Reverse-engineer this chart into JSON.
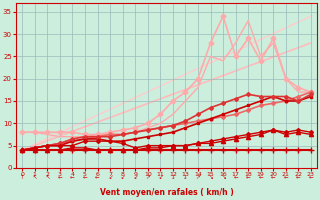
{
  "bg_color": "#cceedd",
  "grid_color": "#99bbbb",
  "xlabel": "Vent moyen/en rafales ( km/h )",
  "xlim": [
    -0.5,
    23.5
  ],
  "ylim": [
    0,
    37
  ],
  "yticks": [
    0,
    5,
    10,
    15,
    20,
    25,
    30,
    35
  ],
  "xticks": [
    0,
    1,
    2,
    3,
    4,
    5,
    6,
    7,
    8,
    9,
    10,
    11,
    12,
    13,
    14,
    15,
    16,
    17,
    18,
    19,
    20,
    21,
    22,
    23
  ],
  "lines": [
    {
      "comment": "flat red line with + markers at y~4",
      "x": [
        0,
        1,
        2,
        3,
        4,
        5,
        6,
        7,
        8,
        9,
        10,
        11,
        12,
        13,
        14,
        15,
        16,
        17,
        18,
        19,
        20,
        21,
        22,
        23
      ],
      "y": [
        4,
        4,
        4,
        4,
        4,
        4,
        4,
        4,
        4,
        4,
        4,
        4,
        4,
        4,
        4,
        4,
        4,
        4,
        4,
        4,
        4,
        4,
        4,
        4
      ],
      "color": "#cc0000",
      "lw": 1.5,
      "marker": "+",
      "ms": 4,
      "zorder": 6
    },
    {
      "comment": "red line with triangle markers - mostly flat ~4-7, spike at x=20",
      "x": [
        0,
        1,
        2,
        3,
        4,
        5,
        6,
        7,
        8,
        9,
        10,
        11,
        12,
        13,
        14,
        15,
        16,
        17,
        18,
        19,
        20,
        21,
        22,
        23
      ],
      "y": [
        4,
        4,
        4,
        4,
        4.5,
        4.5,
        4,
        4,
        4,
        4,
        4.5,
        4.5,
        5,
        5,
        5.5,
        5.5,
        6,
        6.5,
        7,
        7.5,
        8.5,
        7.5,
        8,
        7.5
      ],
      "color": "#cc0000",
      "lw": 1.0,
      "marker": "^",
      "ms": 3,
      "zorder": 5
    },
    {
      "comment": "red dotted line with diamond markers - dips at x=9, x=12",
      "x": [
        0,
        1,
        2,
        3,
        4,
        5,
        6,
        7,
        8,
        9,
        10,
        11,
        12,
        13,
        14,
        15,
        16,
        17,
        18,
        19,
        20,
        21,
        22,
        23
      ],
      "y": [
        4,
        4.5,
        5,
        5,
        5,
        6,
        6,
        6,
        5.5,
        4.5,
        5,
        5,
        5,
        5,
        5.5,
        6,
        6.5,
        7,
        7.5,
        8,
        8.5,
        8,
        8.5,
        8
      ],
      "color": "#cc0000",
      "lw": 1.0,
      "marker": "D",
      "ms": 2,
      "zorder": 5
    },
    {
      "comment": "red line with square markers rising to ~16 at x=19",
      "x": [
        0,
        1,
        2,
        3,
        4,
        5,
        6,
        7,
        8,
        9,
        10,
        11,
        12,
        13,
        14,
        15,
        16,
        17,
        18,
        19,
        20,
        21,
        22,
        23
      ],
      "y": [
        4,
        4.5,
        5,
        5,
        6,
        6.5,
        6.5,
        6,
        6,
        6.5,
        7,
        7.5,
        8,
        9,
        10,
        11,
        12,
        13,
        14,
        15,
        16,
        15,
        15,
        16
      ],
      "color": "#cc0000",
      "lw": 1.2,
      "marker": "s",
      "ms": 2,
      "zorder": 4
    },
    {
      "comment": "slightly lighter red line rising steadily - dashed-style with markers",
      "x": [
        0,
        1,
        2,
        3,
        4,
        5,
        6,
        7,
        8,
        9,
        10,
        11,
        12,
        13,
        14,
        15,
        16,
        17,
        18,
        19,
        20,
        21,
        22,
        23
      ],
      "y": [
        4,
        4.5,
        5,
        5.5,
        6.5,
        7,
        7,
        7,
        7.5,
        8,
        8.5,
        9,
        9.5,
        10.5,
        12,
        13.5,
        14.5,
        15.5,
        16.5,
        16,
        16,
        16,
        15,
        16.5
      ],
      "color": "#dd3333",
      "lw": 1.2,
      "marker": "D",
      "ms": 2,
      "zorder": 4
    },
    {
      "comment": "medium pink line roughly linear 4 to 17",
      "x": [
        0,
        1,
        2,
        3,
        4,
        5,
        6,
        7,
        8,
        9,
        10,
        11,
        12,
        13,
        14,
        15,
        16,
        17,
        18,
        19,
        20,
        21,
        22,
        23
      ],
      "y": [
        4,
        4.5,
        5,
        5.5,
        6,
        6.5,
        7,
        7.5,
        7.5,
        8,
        8.5,
        9,
        9.5,
        10,
        10.5,
        11,
        11.5,
        12,
        13,
        14,
        14.5,
        15,
        16,
        17
      ],
      "color": "#ee6666",
      "lw": 1.2,
      "marker": "D",
      "ms": 2,
      "zorder": 3
    },
    {
      "comment": "light pink line - triangle shape, peaks at x=16 ~34, then drops",
      "x": [
        0,
        1,
        2,
        3,
        4,
        5,
        6,
        7,
        8,
        9,
        10,
        11,
        12,
        13,
        14,
        15,
        16,
        17,
        18,
        19,
        20,
        21,
        22,
        23
      ],
      "y": [
        8,
        8,
        8,
        8,
        8,
        7.5,
        7.5,
        8,
        8.5,
        9,
        10,
        12,
        15,
        17,
        20,
        28,
        34,
        25,
        29,
        24,
        29,
        20,
        18,
        17
      ],
      "color": "#ffaaaa",
      "lw": 1.2,
      "marker": "D",
      "ms": 2.5,
      "zorder": 2
    },
    {
      "comment": "very light pink straight line - from 4 to ~28",
      "x": [
        0,
        23
      ],
      "y": [
        4,
        28
      ],
      "color": "#ffbbbb",
      "lw": 1.2,
      "marker": null,
      "ms": 0,
      "zorder": 1
    },
    {
      "comment": "very light pink straight line - from 4 to ~34",
      "x": [
        0,
        23
      ],
      "y": [
        4,
        34
      ],
      "color": "#ffcccc",
      "lw": 1.0,
      "marker": null,
      "ms": 0,
      "zorder": 1
    },
    {
      "comment": "medium-light pink line peaks at x=18 ~33, x=20 ~29, with markers",
      "x": [
        0,
        1,
        2,
        3,
        4,
        5,
        6,
        7,
        8,
        9,
        10,
        11,
        12,
        13,
        14,
        15,
        16,
        17,
        18,
        19,
        20,
        21,
        22,
        23
      ],
      "y": [
        8,
        8,
        7.5,
        7,
        7,
        7,
        7.5,
        7.5,
        7.5,
        8,
        9,
        10,
        12,
        15,
        18,
        25,
        24,
        28,
        33,
        25,
        28,
        20,
        17,
        17
      ],
      "color": "#ffaaaa",
      "lw": 1.0,
      "marker": null,
      "ms": 0,
      "zorder": 2
    }
  ],
  "xlabel_color": "#cc0000",
  "tick_color": "#cc0000",
  "axis_color": "#cc0000",
  "arrows": [
    "↑",
    "↖",
    "↖",
    "←",
    "←",
    "←",
    "←",
    "↙",
    "↙",
    "↙",
    "↗",
    "↙",
    "↓",
    "↓",
    "↗",
    "↘",
    "↘",
    "←",
    "←",
    "←",
    "←",
    "←",
    "←",
    "←"
  ]
}
